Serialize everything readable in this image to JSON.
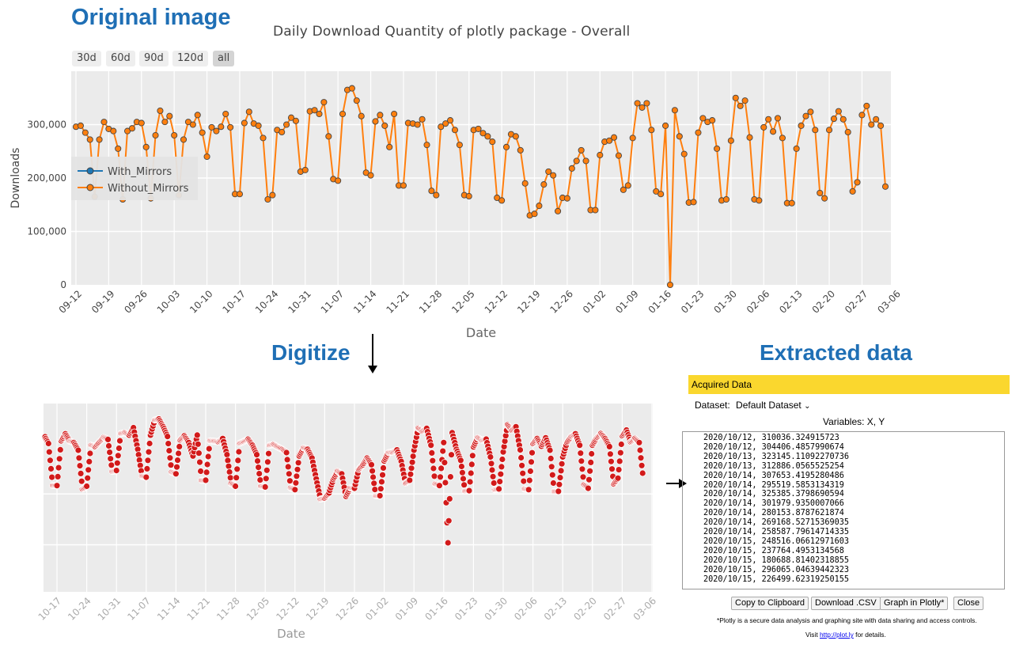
{
  "headings": {
    "original": "Original image",
    "digitize": "Digitize",
    "extracted": "Extracted data"
  },
  "chart_data": {
    "type": "line",
    "title": "Daily Download Quantity of plotly package - Overall",
    "xlabel": "Date",
    "ylabel": "Downloads",
    "ylim": [
      0,
      400000
    ],
    "yticks": [
      "0",
      "100,000",
      "200,000",
      "300,000"
    ],
    "xticks": [
      "09-12",
      "09-19",
      "09-26",
      "10-03",
      "10-10",
      "10-17",
      "10-24",
      "10-31",
      "11-07",
      "11-14",
      "11-21",
      "11-28",
      "12-05",
      "12-12",
      "12-19",
      "12-26",
      "01-02",
      "01-09",
      "01-16",
      "01-23",
      "01-30",
      "02-06",
      "02-13",
      "02-20",
      "02-27",
      "03-06"
    ],
    "range_buttons": [
      "30d",
      "60d",
      "90d",
      "120d",
      "all"
    ],
    "active_range": "all",
    "legend": [
      "With_Mirrors",
      "Without_Mirrors"
    ],
    "legend_position": "left-middle",
    "colors": {
      "with_mirrors": "#1f77b4",
      "without_mirrors": "#ff7f0e",
      "marker_edge": "#444444",
      "plot_bg": "#ebebeb"
    },
    "series": [
      {
        "name": "Without_Mirrors",
        "values": [
          296000,
          298000,
          285000,
          272000,
          165000,
          272000,
          305000,
          292000,
          288000,
          255000,
          160000,
          288000,
          293000,
          305000,
          303000,
          258000,
          162000,
          280000,
          326000,
          305000,
          316000,
          280000,
          168000,
          272000,
          305000,
          300000,
          318000,
          285000,
          240000,
          295000,
          288000,
          296000,
          320000,
          295000,
          170000,
          170000,
          303000,
          324000,
          302000,
          298000,
          275000,
          160000,
          168000,
          290000,
          286000,
          300000,
          313000,
          307000,
          212000,
          215000,
          325000,
          327000,
          320000,
          342000,
          278000,
          198000,
          195000,
          320000,
          365000,
          368000,
          345000,
          316000,
          210000,
          205000,
          306000,
          318000,
          298000,
          258000,
          320000,
          186000,
          186000,
          303000,
          302000,
          300000,
          310000,
          262000,
          176000,
          168000,
          296000,
          302000,
          308000,
          290000,
          262000,
          168000,
          166000,
          290000,
          292000,
          284000,
          278000,
          268000,
          163000,
          158000,
          258000,
          282000,
          278000,
          252000,
          190000,
          130000,
          133000,
          148000,
          188000,
          212000,
          205000,
          138000,
          163000,
          162000,
          218000,
          232000,
          252000,
          232000,
          140000,
          140000,
          243000,
          268000,
          270000,
          276000,
          242000,
          178000,
          186000,
          275000,
          340000,
          332000,
          340000,
          290000,
          175000,
          170000,
          298000,
          0,
          327000,
          278000,
          245000,
          154000,
          155000,
          285000,
          312000,
          305000,
          308000,
          255000,
          158000,
          160000,
          270000,
          350000,
          335000,
          345000,
          276000,
          160000,
          158000,
          295000,
          310000,
          287000,
          312000,
          275000,
          153000,
          153000,
          255000,
          298000,
          316000,
          324000,
          290000,
          172000,
          162000,
          290000,
          311000,
          325000,
          310000,
          286000,
          175000,
          192000,
          318000,
          335000,
          300000,
          310000,
          298000,
          184000
        ]
      },
      {
        "name": "With_Mirrors",
        "values": []
      }
    ]
  },
  "panel": {
    "header": "Acquired Data",
    "dataset_label": "Dataset:",
    "dataset_value": "Default Dataset",
    "variables": "Variables: X, Y",
    "rows": [
      "2020/10/12, 310036.324915723",
      "2020/10/12, 304406.4857990674",
      "2020/10/13, 323145.11092270736",
      "2020/10/13, 312886.0565525254",
      "2020/10/14, 307653.4195280486",
      "2020/10/14, 295519.5853134319",
      "2020/10/14, 325385.3798690594",
      "2020/10/14, 301979.9350007066",
      "2020/10/14, 280153.8787621874",
      "2020/10/14, 269168.52715369035",
      "2020/10/14, 258587.79614714335",
      "2020/10/15, 248516.06612971603",
      "2020/10/15, 237764.4953134568",
      "2020/10/15, 180688.81402318855",
      "2020/10/15, 296065.04639442323",
      "2020/10/15, 226499.62319250155"
    ],
    "buttons": [
      "Copy to Clipboard",
      "Download .CSV",
      "Graph in Plotly*",
      "Close"
    ],
    "note": "*Plotly is a secure data analysis and graphing site with data sharing and access controls.",
    "visit_prefix": "Visit ",
    "visit_link": "http://plot.ly",
    "visit_suffix": " for details."
  },
  "digitized": {
    "xlabel": "Date",
    "xticks": [
      "10-17",
      "10-24",
      "10-31",
      "11-07",
      "11-14",
      "11-21",
      "11-28",
      "12-05",
      "12-12",
      "12-19",
      "12-26",
      "01-02",
      "01-09",
      "01-16",
      "01-23",
      "01-30",
      "02-06",
      "02-13",
      "02-20",
      "02-27",
      "03-06"
    ],
    "point_color": "#d21a1a"
  }
}
